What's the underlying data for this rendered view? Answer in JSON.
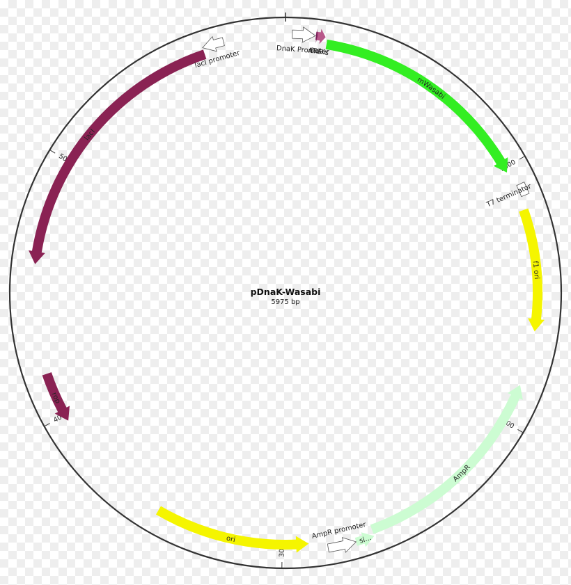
{
  "plasmid": {
    "name": "pDnaK-Wasabi",
    "size_label": "5975 bp",
    "length_bp": 5975
  },
  "ticks": [
    {
      "bp": 1000,
      "label": "1000"
    },
    {
      "bp": 2000,
      "label": "2000"
    },
    {
      "bp": 3000,
      "label": "3000"
    },
    {
      "bp": 4000,
      "label": "4000"
    },
    {
      "bp": 5000,
      "label": "5000"
    }
  ],
  "features": [
    {
      "name": "mWasabi",
      "label": "mWasabi",
      "start": 155,
      "end": 1020,
      "strand": 1,
      "color": "#33ee22",
      "label_pos": "inside"
    },
    {
      "name": "6xHis",
      "label": "6xHis",
      "start": 115,
      "end": 148,
      "strand": 1,
      "color": "#b8588a",
      "label_pos": "outside"
    },
    {
      "name": "ATG",
      "label": "ATG",
      "start": 112,
      "end": 118,
      "strand": 1,
      "color": "#7a1f5a",
      "label_pos": "outside"
    },
    {
      "name": "DnaK Promoter",
      "label": "DnaK Promoter",
      "start": 25,
      "end": 110,
      "strand": 1,
      "color": "#ffffff",
      "label_pos": "outside"
    },
    {
      "name": "T7 terminator",
      "label": "T7 terminator",
      "start": 1080,
      "end": 1125,
      "strand": 0,
      "color": "#ffffff",
      "label_pos": "outside"
    },
    {
      "name": "f1 ori",
      "label": "f1 ori",
      "start": 1175,
      "end": 1640,
      "strand": 1,
      "color": "#f5f500",
      "label_pos": "inside"
    },
    {
      "name": "AmpR",
      "label": "AmpR",
      "start": 1850,
      "end": 2655,
      "strand": -1,
      "color": "#ccfcd2",
      "label_pos": "inside"
    },
    {
      "name": "signal peptide",
      "label": "si...",
      "start": 2655,
      "end": 2725,
      "strand": -1,
      "color": "#ccfcd2",
      "label_pos": "inside"
    },
    {
      "name": "AmpR promoter",
      "label": "AmpR promoter",
      "start": 2725,
      "end": 2830,
      "strand": -1,
      "color": "#ffffff",
      "label_pos": "outside"
    },
    {
      "name": "ori",
      "label": "ori",
      "start": 2900,
      "end": 3490,
      "strand": -1,
      "color": "#f5f500",
      "label_pos": "inside"
    },
    {
      "name": "rop",
      "label": "rop",
      "start": 3975,
      "end": 4170,
      "strand": -1,
      "color": "#8a2253",
      "label_pos": "inside"
    },
    {
      "name": "lacI",
      "label": "lacI",
      "start": 4590,
      "end": 5665,
      "strand": -1,
      "color": "#8a2253",
      "label_pos": "inside"
    },
    {
      "name": "lacI promoter",
      "label": "lacI promoter",
      "start": 5665,
      "end": 5745,
      "strand": -1,
      "color": "#ffffff",
      "label_pos": "outside"
    }
  ]
}
